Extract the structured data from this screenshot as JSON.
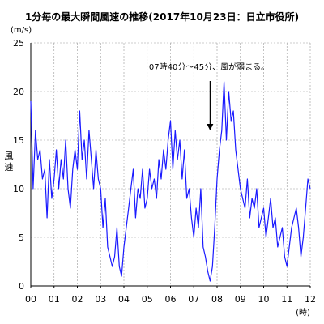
{
  "chart_data": {
    "type": "line",
    "title": "1分毎の最大瞬間風速の推移(2017年10月23日：日立市役所)",
    "ylabel": "風速",
    "yunit": "(m/s)",
    "xunit": "(時)",
    "ylim": [
      0,
      25
    ],
    "yticks": [
      0,
      5,
      10,
      15,
      20,
      25
    ],
    "xlim": [
      0,
      12
    ],
    "xticks": [
      "00",
      "01",
      "02",
      "03",
      "04",
      "05",
      "06",
      "07",
      "08",
      "09",
      "10",
      "11",
      "12"
    ],
    "annotation": {
      "text": "07時40分～45分、風が弱まる。",
      "x": 7.7,
      "y": 16
    },
    "series": [
      {
        "color": "#1a1aff",
        "x": [
          0,
          0.1,
          0.2,
          0.3,
          0.4,
          0.5,
          0.6,
          0.7,
          0.8,
          0.9,
          1.0,
          1.1,
          1.2,
          1.3,
          1.4,
          1.5,
          1.6,
          1.7,
          1.8,
          1.9,
          2.0,
          2.1,
          2.2,
          2.3,
          2.4,
          2.5,
          2.6,
          2.7,
          2.8,
          2.9,
          3.0,
          3.1,
          3.2,
          3.3,
          3.4,
          3.5,
          3.6,
          3.7,
          3.8,
          3.9,
          4.0,
          4.1,
          4.2,
          4.3,
          4.4,
          4.5,
          4.6,
          4.7,
          4.8,
          4.9,
          5.0,
          5.1,
          5.2,
          5.3,
          5.4,
          5.5,
          5.6,
          5.7,
          5.8,
          5.9,
          6.0,
          6.1,
          6.2,
          6.3,
          6.4,
          6.5,
          6.6,
          6.7,
          6.8,
          6.9,
          7.0,
          7.1,
          7.2,
          7.3,
          7.4,
          7.5,
          7.6,
          7.7,
          7.8,
          7.9,
          8.0,
          8.1,
          8.2,
          8.3,
          8.4,
          8.5,
          8.6,
          8.7,
          8.8,
          8.9,
          9.0,
          9.1,
          9.2,
          9.3,
          9.4,
          9.5,
          9.6,
          9.7,
          9.8,
          9.9,
          10.0,
          10.1,
          10.2,
          10.3,
          10.4,
          10.5,
          10.6,
          10.7,
          10.8,
          10.9,
          11.0,
          11.1,
          11.2,
          11.3,
          11.4,
          11.5,
          11.6,
          11.7,
          11.8,
          11.9,
          12.0
        ],
        "y": [
          19,
          10,
          16,
          13,
          14,
          11,
          12,
          7,
          13,
          9,
          11,
          14,
          10,
          13,
          11,
          15,
          10,
          8,
          12,
          14,
          12,
          18,
          13,
          15,
          11,
          16,
          13,
          10,
          14,
          11,
          10,
          6,
          9,
          4,
          3,
          2,
          3,
          6,
          2,
          1,
          4,
          6,
          8,
          10,
          12,
          7,
          10,
          9,
          12,
          8,
          9,
          12,
          10,
          11,
          9,
          13,
          11,
          14,
          12,
          15,
          17,
          12,
          16,
          13,
          15,
          11,
          14,
          9,
          10,
          7,
          5,
          8,
          6,
          10,
          4,
          3,
          1.5,
          0.5,
          2,
          6,
          11,
          14,
          16,
          21,
          15,
          20,
          17,
          18,
          14,
          12,
          10,
          9,
          8,
          11,
          7,
          9,
          8,
          10,
          6,
          7,
          8,
          5,
          7,
          9,
          6,
          7,
          4,
          5,
          6,
          3,
          2,
          4,
          6,
          7,
          8,
          6,
          3,
          5,
          8,
          11,
          10
        ]
      }
    ]
  }
}
